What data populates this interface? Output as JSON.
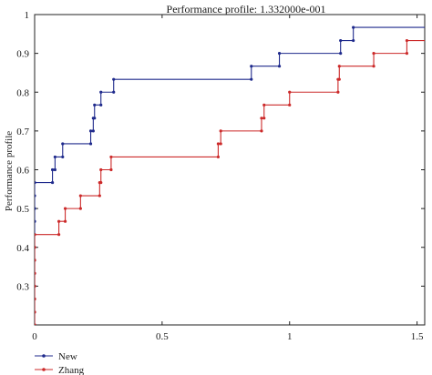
{
  "chart_data": {
    "type": "line",
    "step": true,
    "title": "Performance profile: 1.332000e-001",
    "xlabel": "",
    "ylabel": "Performance profile",
    "xlim": [
      0,
      1.53
    ],
    "ylim": [
      0.2,
      1.0
    ],
    "xticks": [
      0,
      0.5,
      1,
      1.5
    ],
    "xtick_labels": [
      "0",
      "0.5",
      "1",
      "1.5"
    ],
    "yticks": [
      0.3,
      0.4,
      0.5,
      0.6,
      0.7,
      0.8,
      0.9,
      1.0
    ],
    "ytick_labels": [
      "0.3",
      "0.4",
      "0.5",
      "0.6",
      "0.7",
      "0.8",
      "0.9",
      "1"
    ],
    "grid": false,
    "legend_position": "bottom-left-outside",
    "series": [
      {
        "name": "New",
        "color": "#1f2a8c",
        "points": [
          [
            0,
            0.2
          ],
          [
            0,
            0.233
          ],
          [
            0,
            0.267
          ],
          [
            0,
            0.3
          ],
          [
            0,
            0.333
          ],
          [
            0,
            0.367
          ],
          [
            0,
            0.4
          ],
          [
            0,
            0.433
          ],
          [
            0,
            0.467
          ],
          [
            0,
            0.5
          ],
          [
            0,
            0.533
          ],
          [
            0,
            0.567
          ],
          [
            0.07,
            0.567
          ],
          [
            0.07,
            0.6
          ],
          [
            0.08,
            0.6
          ],
          [
            0.08,
            0.633
          ],
          [
            0.11,
            0.633
          ],
          [
            0.11,
            0.667
          ],
          [
            0.22,
            0.667
          ],
          [
            0.22,
            0.7
          ],
          [
            0.23,
            0.7
          ],
          [
            0.23,
            0.733
          ],
          [
            0.235,
            0.733
          ],
          [
            0.235,
            0.767
          ],
          [
            0.26,
            0.767
          ],
          [
            0.26,
            0.8
          ],
          [
            0.31,
            0.8
          ],
          [
            0.31,
            0.833
          ],
          [
            0.85,
            0.833
          ],
          [
            0.85,
            0.867
          ],
          [
            0.96,
            0.867
          ],
          [
            0.96,
            0.9
          ],
          [
            1.2,
            0.9
          ],
          [
            1.2,
            0.933
          ],
          [
            1.25,
            0.933
          ],
          [
            1.25,
            0.967
          ],
          [
            1.53,
            0.967
          ]
        ]
      },
      {
        "name": "Zhang",
        "color": "#cc2a2a",
        "points": [
          [
            0,
            0.2
          ],
          [
            0,
            0.233
          ],
          [
            0,
            0.267
          ],
          [
            0,
            0.3
          ],
          [
            0,
            0.333
          ],
          [
            0,
            0.367
          ],
          [
            0,
            0.4
          ],
          [
            0,
            0.433
          ],
          [
            0.095,
            0.433
          ],
          [
            0.095,
            0.467
          ],
          [
            0.12,
            0.467
          ],
          [
            0.12,
            0.5
          ],
          [
            0.18,
            0.5
          ],
          [
            0.18,
            0.533
          ],
          [
            0.255,
            0.533
          ],
          [
            0.255,
            0.567
          ],
          [
            0.26,
            0.567
          ],
          [
            0.26,
            0.6
          ],
          [
            0.3,
            0.6
          ],
          [
            0.3,
            0.633
          ],
          [
            0.72,
            0.633
          ],
          [
            0.72,
            0.667
          ],
          [
            0.73,
            0.667
          ],
          [
            0.73,
            0.7
          ],
          [
            0.89,
            0.7
          ],
          [
            0.89,
            0.733
          ],
          [
            0.9,
            0.733
          ],
          [
            0.9,
            0.767
          ],
          [
            1.0,
            0.767
          ],
          [
            1.0,
            0.8
          ],
          [
            1.19,
            0.8
          ],
          [
            1.19,
            0.833
          ],
          [
            1.195,
            0.833
          ],
          [
            1.195,
            0.867
          ],
          [
            1.33,
            0.867
          ],
          [
            1.33,
            0.9
          ],
          [
            1.46,
            0.9
          ],
          [
            1.46,
            0.933
          ],
          [
            1.53,
            0.933
          ]
        ]
      }
    ]
  }
}
